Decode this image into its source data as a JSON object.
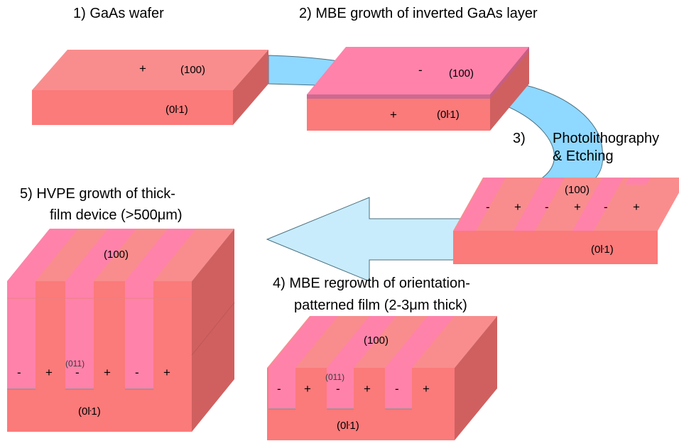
{
  "steps": {
    "s1": "1)  GaAs wafer",
    "s2": "2)  MBE growth of inverted GaAs layer",
    "s3_num": "3)",
    "s3_line1": "Photolithography",
    "s3_line2": "& Etching",
    "s4_line1": "4) MBE regrowth of orientation-",
    "s4_line2": "patterned film (2-3μm thick)",
    "s5_line1": "5) HVPE growth of thick-",
    "s5_line2": "film device (>500μm)"
  },
  "planes": {
    "p100": "(100)",
    "p011bar": "(0ŀ1)",
    "p011bar_label": "(0",
    "p011bar_tail": "1)",
    "p011": "(011)"
  },
  "signs": {
    "plus": "+",
    "minus": "-"
  },
  "colors": {
    "top_face": "#f98d8d",
    "front_face": "#fb7a7a",
    "side_face": "#d06060",
    "inverted_top": "#ff82aa",
    "inverted_side": "#cc6080",
    "arrow": "#8fd8ff",
    "arrow_stroke": "#4a6f80"
  }
}
